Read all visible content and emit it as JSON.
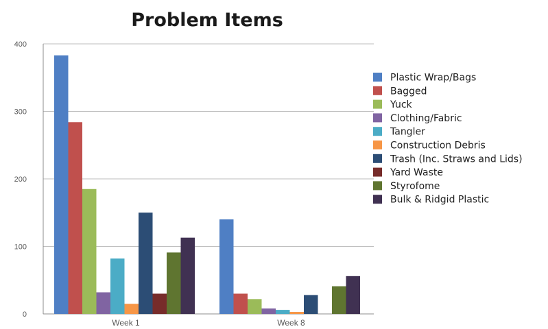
{
  "chart_data": {
    "type": "bar",
    "title": "Problem Items",
    "xlabel": "",
    "ylabel": "",
    "categories": [
      "Week 1",
      "Week 8"
    ],
    "ylim": [
      0,
      400
    ],
    "yticks": [
      "0",
      "100",
      "200",
      "300",
      "400"
    ],
    "grid": true,
    "legend_position": "right",
    "series": [
      {
        "name": "Plastic Wrap/Bags",
        "color": "#4f7fc4",
        "values": [
          383,
          140
        ]
      },
      {
        "name": "Bagged",
        "color": "#c0504d",
        "values": [
          284,
          30
        ]
      },
      {
        "name": "Yuck",
        "color": "#9bbb59",
        "values": [
          185,
          22
        ]
      },
      {
        "name": "Clothing/Fabric",
        "color": "#8064a2",
        "values": [
          32,
          8
        ]
      },
      {
        "name": "Tangler",
        "color": "#4bacc6",
        "values": [
          82,
          6
        ]
      },
      {
        "name": "Construction Debris",
        "color": "#f79646",
        "values": [
          15,
          3
        ]
      },
      {
        "name": "Trash (Inc. Straws and Lids)",
        "color": "#2c4d75",
        "values": [
          150,
          28
        ]
      },
      {
        "name": "Yard Waste",
        "color": "#772c2a",
        "values": [
          30,
          0
        ]
      },
      {
        "name": "Styrofome",
        "color": "#5f7530",
        "values": [
          91,
          41
        ]
      },
      {
        "name": "Bulk & Ridgid Plastic",
        "color": "#403152",
        "values": [
          113,
          56
        ]
      }
    ]
  }
}
